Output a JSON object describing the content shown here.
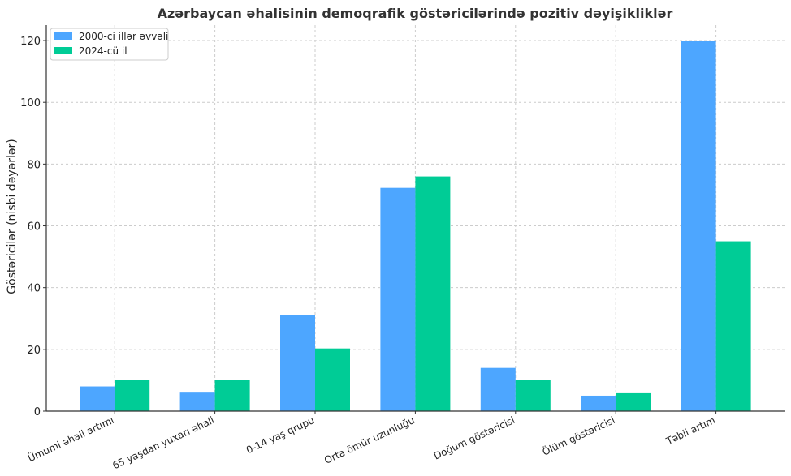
{
  "chart_data": {
    "type": "bar",
    "title": "Azərbaycan əhalisinin demoqrafik göstəricilərində pozitiv dəyişikliklər",
    "xlabel": "",
    "ylabel": "Göstəricilər (nisbi dəyərlər)",
    "ylim": [
      0,
      125
    ],
    "yticks": [
      0,
      20,
      40,
      60,
      80,
      100,
      120
    ],
    "grid": true,
    "legend_position": "top-left",
    "categories": [
      "Ümumi əhali artımı",
      "65 yaşdan yuxarı əhali",
      "0-14 yaş qrupu",
      "Orta ömür uzunluğu",
      "Doğum göstəricisi",
      "Ölüm göstəricisi",
      "Təbii artım"
    ],
    "series": [
      {
        "name": "2000-ci illər əvvəli",
        "color": "#4da6ff",
        "values": [
          8,
          6,
          31,
          72.3,
          14,
          5,
          120
        ]
      },
      {
        "name": "2024-cü il",
        "color": "#00cc96",
        "values": [
          10.2,
          10,
          20.3,
          76,
          10,
          5.8,
          55
        ]
      }
    ]
  }
}
